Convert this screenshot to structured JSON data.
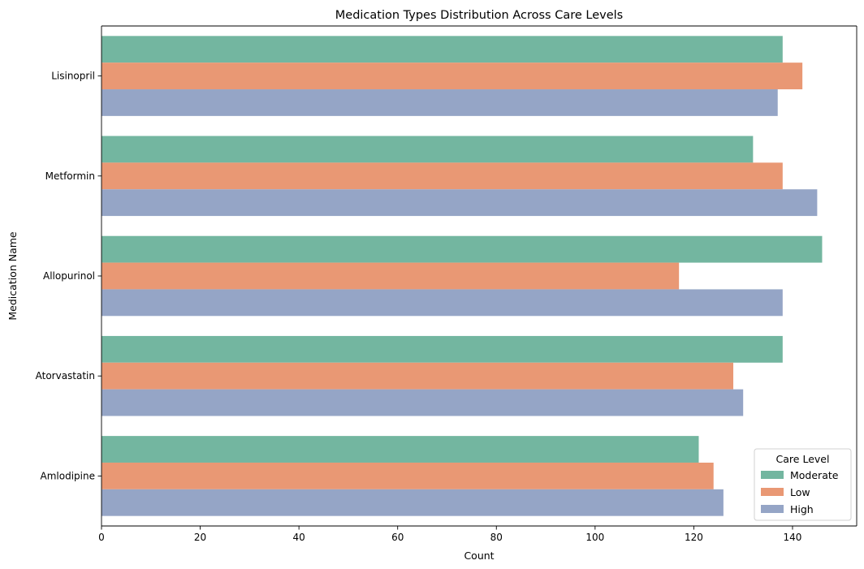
{
  "chart_data": {
    "type": "bar",
    "orientation": "horizontal",
    "title": "Medication Types Distribution Across Care Levels",
    "xlabel": "Count",
    "ylabel": "Medication Name",
    "categories": [
      "Lisinopril",
      "Metformin",
      "Allopurinol",
      "Atorvastatin",
      "Amlodipine"
    ],
    "series": [
      {
        "name": "Moderate",
        "color": "#73b6a0",
        "values": [
          138,
          132,
          146,
          138,
          121
        ]
      },
      {
        "name": "Low",
        "color": "#e99874",
        "values": [
          142,
          138,
          117,
          128,
          124
        ]
      },
      {
        "name": "High",
        "color": "#95a5c6",
        "values": [
          137,
          145,
          138,
          130,
          126
        ]
      }
    ],
    "xlim": [
      0,
      153
    ],
    "xticks": [
      0,
      20,
      40,
      60,
      80,
      100,
      120,
      140
    ],
    "grid": false,
    "legend": {
      "title": "Care Level",
      "placement": "bottom-right"
    }
  }
}
